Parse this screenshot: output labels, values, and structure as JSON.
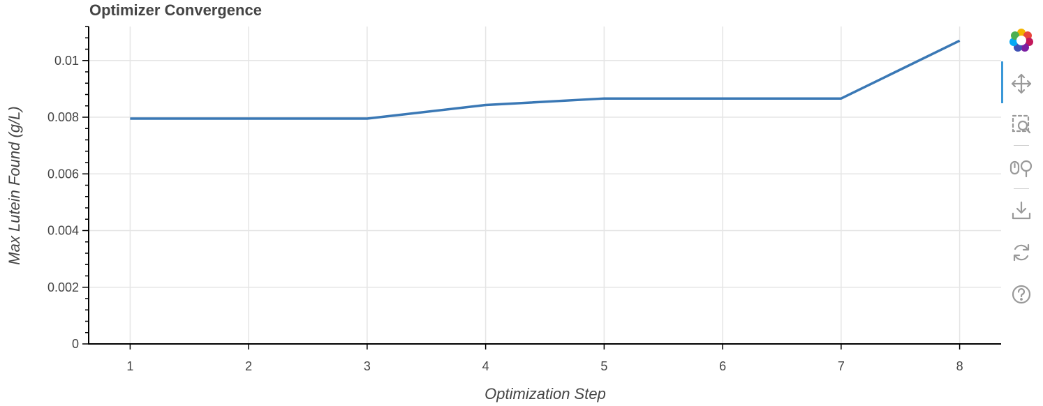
{
  "chart_data": {
    "type": "line",
    "title": "Optimizer Convergence",
    "xlabel": "Optimization Step",
    "ylabel": "Max Lutein Found (g/L)",
    "x": [
      1,
      2,
      3,
      4,
      5,
      6,
      7,
      8
    ],
    "series": [
      {
        "values": [
          0.00795,
          0.00795,
          0.00795,
          0.00843,
          0.00866,
          0.00866,
          0.00866,
          0.0107
        ],
        "color": "#3a78b5"
      }
    ],
    "xlim": [
      0.65,
      8.35
    ],
    "ylim": [
      0,
      0.0112
    ],
    "xticks": [
      1,
      2,
      3,
      4,
      5,
      6,
      7,
      8
    ],
    "xtick_labels": [
      "1",
      "2",
      "3",
      "4",
      "5",
      "6",
      "7",
      "8"
    ],
    "yticks": [
      0,
      0.002,
      0.004,
      0.006,
      0.008,
      0.01
    ],
    "ytick_labels": [
      "0",
      "0.002",
      "0.004",
      "0.006",
      "0.008",
      "0.01"
    ],
    "grid": true,
    "legend": "none"
  },
  "toolbar": {
    "tools": [
      {
        "icon": "bokeh-logo-icon",
        "active": false
      },
      {
        "icon": "pan-icon",
        "active": true
      },
      {
        "icon": "box-zoom-icon",
        "active": false
      },
      {
        "icon": "wheel-zoom-icon",
        "active": false
      },
      {
        "icon": "save-icon",
        "active": false
      },
      {
        "icon": "reset-icon",
        "active": false
      },
      {
        "icon": "help-icon",
        "active": false
      }
    ]
  }
}
